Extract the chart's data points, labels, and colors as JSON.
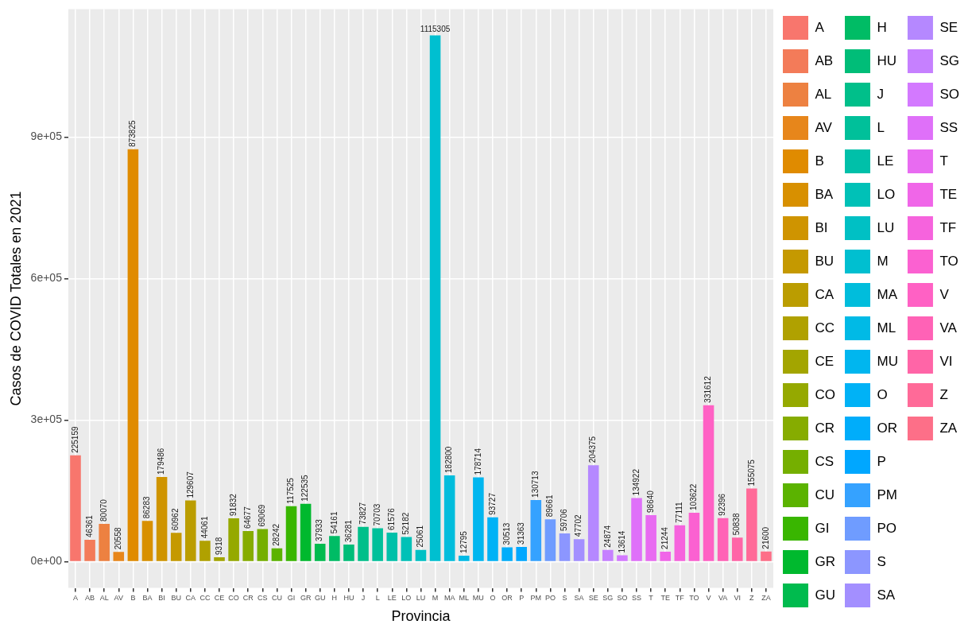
{
  "chart_data": {
    "type": "bar",
    "xlabel": "Provincia",
    "ylabel": "Casos de COVID Totales en 2021",
    "categories": [
      "A",
      "AB",
      "AL",
      "AV",
      "B",
      "BA",
      "BI",
      "BU",
      "CA",
      "CC",
      "CE",
      "CO",
      "CR",
      "CS",
      "CU",
      "GI",
      "GR",
      "GU",
      "H",
      "HU",
      "J",
      "L",
      "LE",
      "LO",
      "LU",
      "M",
      "MA",
      "ML",
      "MU",
      "O",
      "OR",
      "P",
      "PM",
      "PO",
      "S",
      "SA",
      "SE",
      "SG",
      "SO",
      "SS",
      "T",
      "TE",
      "TF",
      "TO",
      "V",
      "VA",
      "VI",
      "Z",
      "ZA"
    ],
    "series": [
      {
        "name": "A",
        "color": "#f8766d",
        "x": [
          "A"
        ],
        "values": [
          225159
        ]
      },
      {
        "name": "AB",
        "color": "#f37b59",
        "x": [
          "AB"
        ],
        "values": [
          46361
        ]
      },
      {
        "name": "AL",
        "color": "#ed8141",
        "x": [
          "AL"
        ],
        "values": [
          80070
        ]
      },
      {
        "name": "AV",
        "color": "#e7861b",
        "x": [
          "AV"
        ],
        "values": [
          20558
        ]
      },
      {
        "name": "B",
        "color": "#e08b00",
        "x": [
          "B"
        ],
        "values": [
          873825
        ]
      },
      {
        "name": "BA",
        "color": "#d89000",
        "x": [
          "BA"
        ],
        "values": [
          86283
        ]
      },
      {
        "name": "BI",
        "color": "#cf9400",
        "x": [
          "BI"
        ],
        "values": [
          179486
        ]
      },
      {
        "name": "BU",
        "color": "#c59900",
        "x": [
          "BU"
        ],
        "values": [
          60962
        ]
      },
      {
        "name": "CA",
        "color": "#bb9d00",
        "x": [
          "CA"
        ],
        "values": [
          129607
        ]
      },
      {
        "name": "CC",
        "color": "#b0a100",
        "x": [
          "CC"
        ],
        "values": [
          44061
        ]
      },
      {
        "name": "CE",
        "color": "#a3a500",
        "x": [
          "CE"
        ],
        "values": [
          9318
        ]
      },
      {
        "name": "CO",
        "color": "#95a900",
        "x": [
          "CO"
        ],
        "values": [
          91832
        ]
      },
      {
        "name": "CR",
        "color": "#86ac00",
        "x": [
          "CR"
        ],
        "values": [
          64677
        ]
      },
      {
        "name": "CS",
        "color": "#75af00",
        "x": [
          "CS"
        ],
        "values": [
          69069
        ]
      },
      {
        "name": "CU",
        "color": "#5bb300",
        "x": [
          "CU"
        ],
        "values": [
          28242
        ]
      },
      {
        "name": "GI",
        "color": "#39b600",
        "x": [
          "GI"
        ],
        "values": [
          117525
        ]
      },
      {
        "name": "GR",
        "color": "#00b92e",
        "x": [
          "GR"
        ],
        "values": [
          122535
        ]
      },
      {
        "name": "GU",
        "color": "#00bb4e",
        "x": [
          "GU"
        ],
        "values": [
          37933
        ]
      },
      {
        "name": "H",
        "color": "#00bc65",
        "x": [
          "H"
        ],
        "values": [
          54161
        ]
      },
      {
        "name": "HU",
        "color": "#00bd78",
        "x": [
          "HU"
        ],
        "values": [
          36281
        ]
      },
      {
        "name": "J",
        "color": "#00bf8a",
        "x": [
          "J"
        ],
        "values": [
          73827
        ]
      },
      {
        "name": "L",
        "color": "#00c09a",
        "x": [
          "L"
        ],
        "values": [
          70703
        ]
      },
      {
        "name": "LE",
        "color": "#00c0a9",
        "x": [
          "LE"
        ],
        "values": [
          61576
        ]
      },
      {
        "name": "LO",
        "color": "#00c1b7",
        "x": [
          "LO"
        ],
        "values": [
          52182
        ]
      },
      {
        "name": "LU",
        "color": "#00c0c4",
        "x": [
          "LU"
        ],
        "values": [
          25061
        ]
      },
      {
        "name": "M",
        "color": "#00bfd0",
        "x": [
          "M"
        ],
        "values": [
          1115305
        ]
      },
      {
        "name": "MA",
        "color": "#00bddc",
        "x": [
          "MA"
        ],
        "values": [
          182800
        ]
      },
      {
        "name": "ML",
        "color": "#00bae6",
        "x": [
          "ML"
        ],
        "values": [
          12795
        ]
      },
      {
        "name": "MU",
        "color": "#00b6ef",
        "x": [
          "MU"
        ],
        "values": [
          178714
        ]
      },
      {
        "name": "O",
        "color": "#00b2f6",
        "x": [
          "O"
        ],
        "values": [
          93727
        ]
      },
      {
        "name": "OR",
        "color": "#00adfa",
        "x": [
          "OR"
        ],
        "values": [
          30513
        ]
      },
      {
        "name": "P",
        "color": "#00a7ff",
        "x": [
          "P"
        ],
        "values": [
          31363
        ]
      },
      {
        "name": "PM",
        "color": "#35a2ff",
        "x": [
          "PM"
        ],
        "values": [
          130713
        ]
      },
      {
        "name": "PO",
        "color": "#6f9cff",
        "x": [
          "PO"
        ],
        "values": [
          89661
        ]
      },
      {
        "name": "S",
        "color": "#8c96ff",
        "x": [
          "S"
        ],
        "values": [
          59706
        ]
      },
      {
        "name": "SA",
        "color": "#a38fff",
        "x": [
          "SA"
        ],
        "values": [
          47702
        ]
      },
      {
        "name": "SE",
        "color": "#b588ff",
        "x": [
          "SE"
        ],
        "values": [
          204375
        ]
      },
      {
        "name": "SG",
        "color": "#c680ff",
        "x": [
          "SG"
        ],
        "values": [
          24874
        ]
      },
      {
        "name": "SO",
        "color": "#d379ff",
        "x": [
          "SO"
        ],
        "values": [
          13614
        ]
      },
      {
        "name": "SS",
        "color": "#df70f9",
        "x": [
          "SS"
        ],
        "values": [
          134922
        ]
      },
      {
        "name": "T",
        "color": "#e86bf1",
        "x": [
          "T"
        ],
        "values": [
          98640
        ]
      },
      {
        "name": "TE",
        "color": "#f066e8",
        "x": [
          "TE"
        ],
        "values": [
          21244
        ]
      },
      {
        "name": "TF",
        "color": "#f663dd",
        "x": [
          "TF"
        ],
        "values": [
          77111
        ]
      },
      {
        "name": "TO",
        "color": "#fb61d1",
        "x": [
          "TO"
        ],
        "values": [
          103622
        ]
      },
      {
        "name": "V",
        "color": "#ff61c4",
        "x": [
          "V"
        ],
        "values": [
          331612
        ]
      },
      {
        "name": "VA",
        "color": "#ff62b6",
        "x": [
          "VA"
        ],
        "values": [
          92396
        ]
      },
      {
        "name": "VI",
        "color": "#ff65a7",
        "x": [
          "VI"
        ],
        "values": [
          50838
        ]
      },
      {
        "name": "Z",
        "color": "#ff6a98",
        "x": [
          "Z"
        ],
        "values": [
          155075
        ]
      },
      {
        "name": "ZA",
        "color": "#fd6f88",
        "x": [
          "ZA"
        ],
        "values": [
          21600
        ]
      }
    ],
    "ylim": [
      -55765,
      1171070
    ],
    "yticks": [
      {
        "value": 0,
        "label": "0e+00"
      },
      {
        "value": 300000,
        "label": "3e+05"
      },
      {
        "value": 600000,
        "label": "6e+05"
      },
      {
        "value": 900000,
        "label": "9e+05"
      }
    ],
    "grid": true,
    "legend": "right",
    "data_labels": true
  }
}
